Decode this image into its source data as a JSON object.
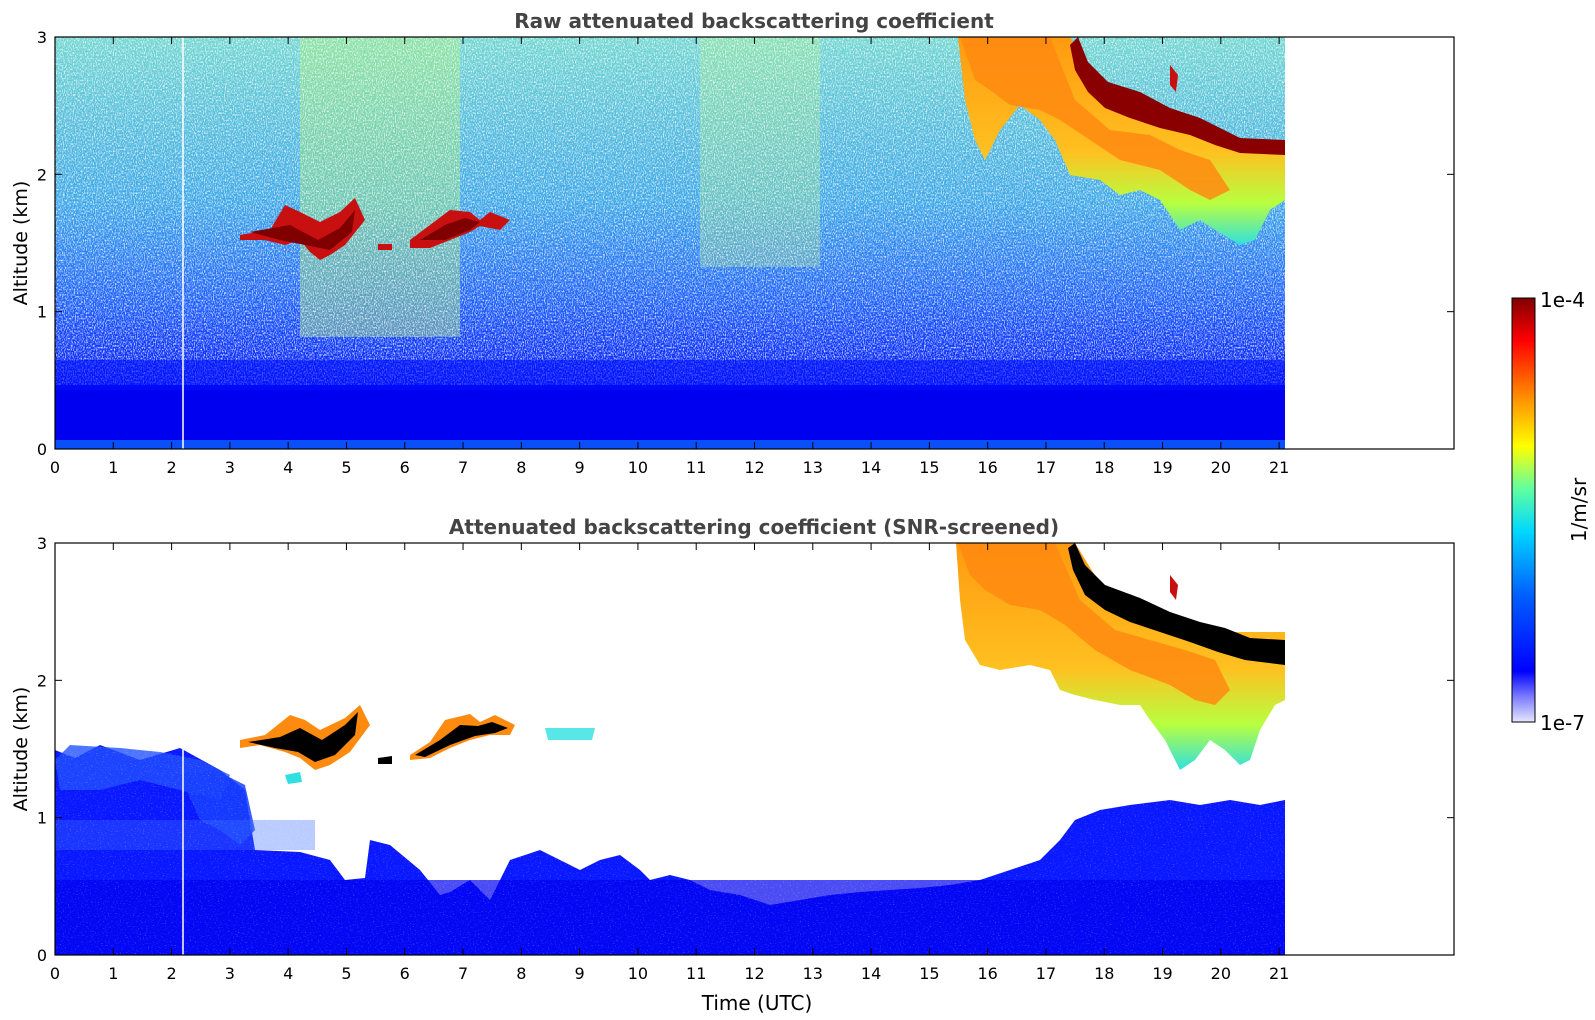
{
  "chart_data": [
    {
      "type": "heatmap",
      "title": "Raw attenuated backscattering coefficient",
      "xlabel": "",
      "ylabel": "Altitude (km)",
      "xlim": [
        0,
        24
      ],
      "ylim": [
        0,
        3
      ],
      "xticks": [
        "0",
        "1",
        "2",
        "3",
        "4",
        "5",
        "6",
        "7",
        "8",
        "9",
        "10",
        "11",
        "12",
        "13",
        "14",
        "15",
        "16",
        "17",
        "18",
        "19",
        "20",
        "21"
      ],
      "yticks": [
        "0",
        "1",
        "2",
        "3"
      ],
      "data_end_time": 21.1,
      "grid": false,
      "features": {
        "boundary_layer_top_km": 0.45,
        "cloud_layer": {
          "start": 3.2,
          "end": 7.8,
          "base_km": 1.45,
          "top_km": 1.8
        },
        "high_cloud": {
          "start": 15.6,
          "end": 21.1,
          "top_km": 3.0,
          "bottom_km": 2.2
        }
      }
    },
    {
      "type": "heatmap",
      "title": "Attenuated backscattering coefficient (SNR-screened)",
      "xlabel": "Time (UTC)",
      "ylabel": "Altitude (km)",
      "xlim": [
        0,
        24
      ],
      "ylim": [
        0,
        3
      ],
      "xticks": [
        "0",
        "1",
        "2",
        "3",
        "4",
        "5",
        "6",
        "7",
        "8",
        "9",
        "10",
        "11",
        "12",
        "13",
        "14",
        "15",
        "16",
        "17",
        "18",
        "19",
        "20",
        "21"
      ],
      "yticks": [
        "0",
        "1",
        "2",
        "3"
      ],
      "data_end_time": 21.1,
      "grid": false
    }
  ],
  "colorbar": {
    "label": "1/m/sr",
    "max_label": "1e-4",
    "min_label": "1e-7",
    "scale": "log",
    "colormap": [
      "#e6e6ff",
      "#0000ff",
      "#0080ff",
      "#00ffff",
      "#80ff80",
      "#ffff00",
      "#ff8000",
      "#ff0000",
      "#800000"
    ]
  }
}
